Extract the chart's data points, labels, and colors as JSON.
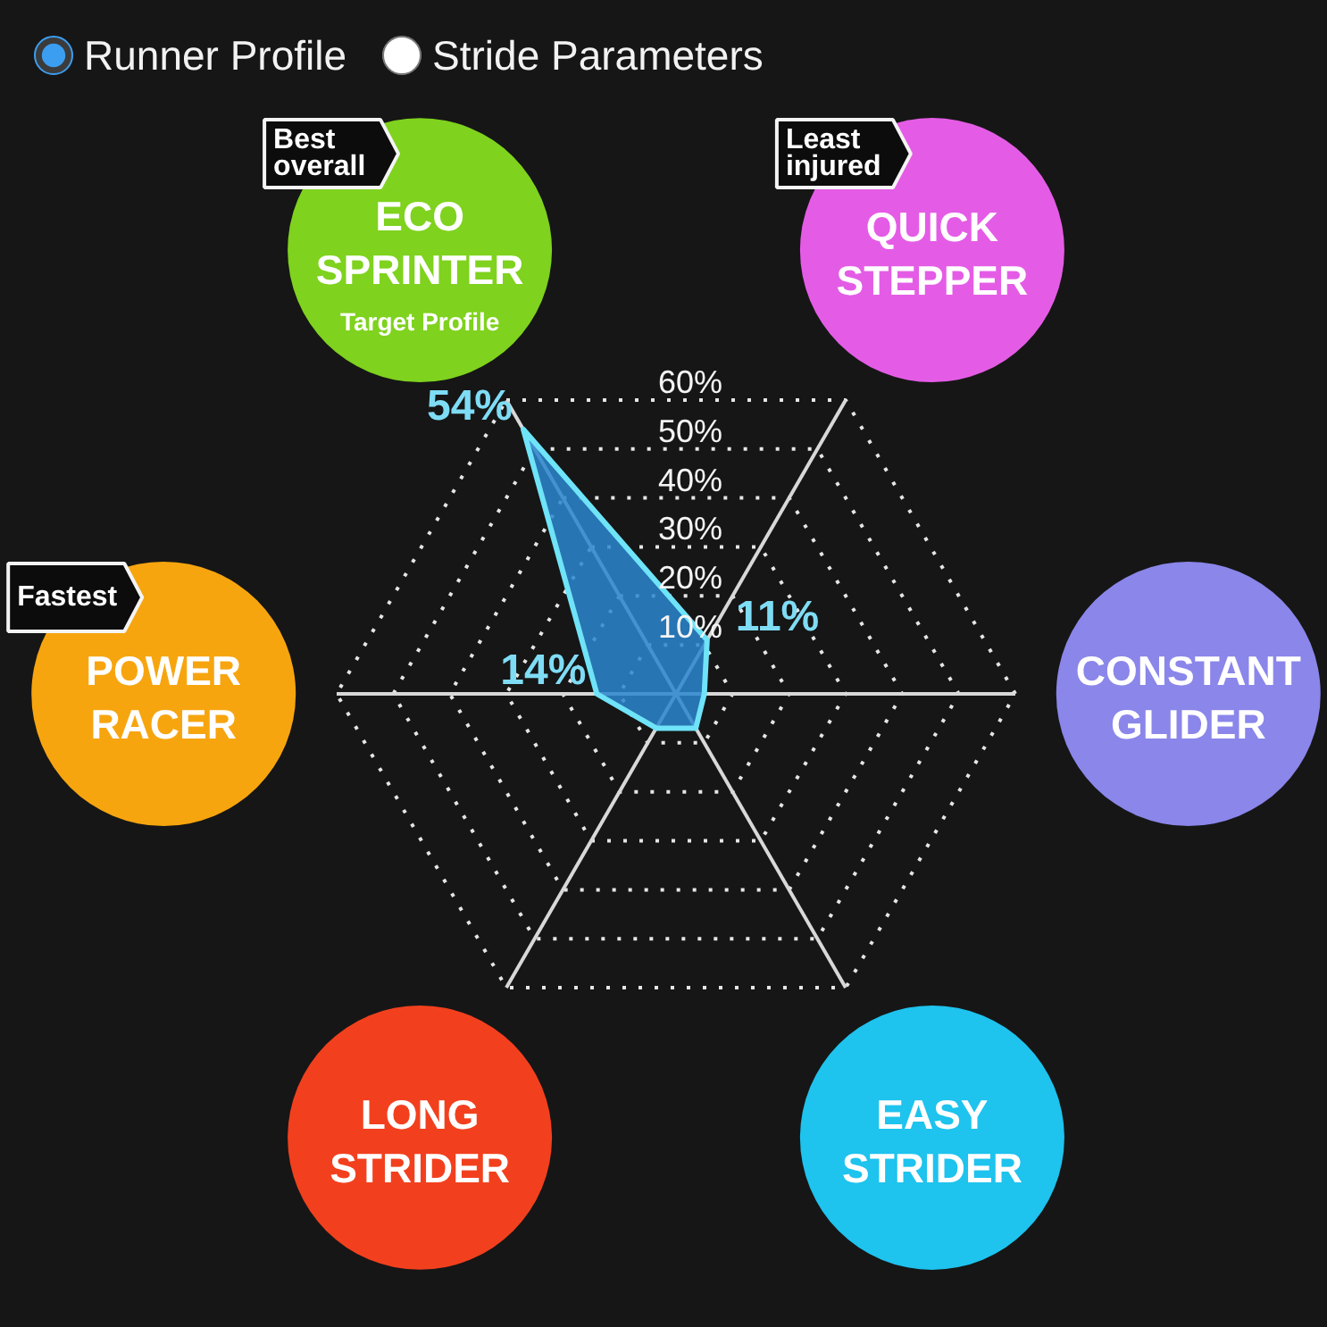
{
  "chart_data": {
    "type": "radar",
    "categories": [
      "ECO SPRINTER",
      "QUICK STEPPER",
      "CONSTANT GLIDER",
      "EASY STRIDER",
      "LONG STRIDER",
      "POWER RACER"
    ],
    "series": [
      {
        "color": "#2a86cf",
        "values": [
          54,
          11,
          5,
          7,
          7,
          14
        ],
        "value_labels": [
          "54%",
          "11%",
          null,
          null,
          null,
          "14%"
        ]
      }
    ],
    "ylim": [
      0,
      60
    ],
    "yticks": [
      {
        "value": 10,
        "label": "10%"
      },
      {
        "value": 20,
        "label": "20%"
      },
      {
        "value": 30,
        "label": "30%"
      },
      {
        "value": 40,
        "label": "40%"
      },
      {
        "value": 50,
        "label": "50%"
      },
      {
        "value": 60,
        "label": "60%"
      }
    ],
    "grid": true,
    "annotations": [
      "Runner Profile",
      "Stride Parameters",
      {
        "text": "Best overall",
        "x": "ECO SPRINTER"
      },
      {
        "text": "Target Profile",
        "x": "ECO SPRINTER"
      },
      {
        "text": "Least injured",
        "x": "QUICK STEPPER"
      },
      {
        "text": "Fastest",
        "x": "POWER RACER"
      }
    ]
  }
}
